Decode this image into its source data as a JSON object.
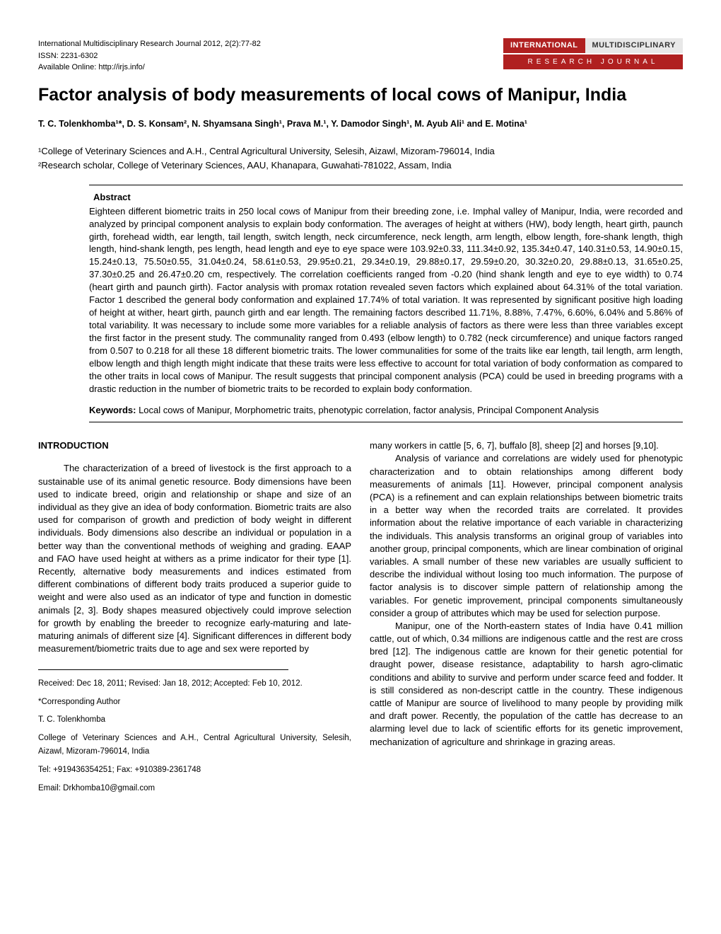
{
  "header": {
    "journal_line": "International Multidisciplinary Research Journal 2012, 2(2):77-82",
    "issn": "ISSN: 2231-6302",
    "online": "Available Online: http://irjs.info/",
    "badge_intl": "INTERNATIONAL",
    "badge_multi": "MULTIDISCIPLINARY",
    "badge_bottom": "RESEARCH JOURNAL"
  },
  "title": "Factor analysis of body measurements of local cows of Manipur, India",
  "authors_html": "T. C. Tolenkhomba¹*, D. S. Konsam², N. Shyamsana Singh¹, Prava M.¹, Y. Damodor Singh¹, M. Ayub Ali¹ and E. Motina¹",
  "affiliations": {
    "a1": "¹College of Veterinary Sciences and A.H., Central Agricultural University, Selesih, Aizawl, Mizoram-796014, India",
    "a2": "²Research scholar, College of Veterinary Sciences, AAU, Khanapara, Guwahati-781022, Assam, India"
  },
  "abstract": {
    "heading": "Abstract",
    "body": "Eighteen different biometric traits in 250 local cows of Manipur from their breeding zone, i.e. Imphal valley of Manipur, India, were recorded and analyzed by principal component analysis to explain body conformation. The averages of height at withers (HW), body length, heart girth, paunch girth, forehead width, ear length, tail length, switch length, neck circumference, neck length, arm length,   elbow length, fore-shank length, thigh length, hind-shank length, pes length, head length and eye to eye space were 103.92±0.33, 111.34±0.92, 135.34±0.47, 140.31±0.53, 14.90±0.15, 15.24±0.13, 75.50±0.55, 31.04±0.24, 58.61±0.53, 29.95±0.21, 29.34±0.19, 29.88±0.17, 29.59±0.20, 30.32±0.20, 29.88±0.13, 31.65±0.25, 37.30±0.25 and 26.47±0.20 cm, respectively. The correlation coefficients ranged from -0.20 (hind shank length and eye to eye width) to 0.74 (heart girth and paunch girth).   Factor analysis with promax rotation revealed seven factors which explained about 64.31% of the total variation. Factor 1 described the general body conformation and explained 17.74% of total variation. It was represented by significant positive high loading of height at wither, heart girth, paunch girth and ear length. The remaining factors described 11.71%, 8.88%, 7.47%, 6.60%, 6.04% and 5.86% of total variability.   It was necessary to include some more variables for a reliable analysis of factors as there were less than three variables except the first factor in the present study. The communality ranged from 0.493 (elbow length) to 0.782 (neck circumference) and unique factors ranged from 0.507 to 0.218 for all these 18 different biometric traits. The lower communalities for some of the traits like ear length, tail length, arm length, elbow length and thigh length might indicate that these traits were less effective to account for total variation of body conformation as compared to the other traits in local cows of Manipur. The result suggests that principal component analysis (PCA) could be used in breeding programs with a drastic reduction in the number of biometric traits to be recorded to explain body conformation.",
    "keywords_label": "Keywords:",
    "keywords": " Local cows of Manipur, Morphometric traits, phenotypic correlation, factor analysis, Principal Component Analysis"
  },
  "intro_heading": "INTRODUCTION",
  "col_left_p1": "The characterization of a breed of livestock is the first approach to a sustainable use of its animal genetic resource. Body dimensions have been used to indicate breed, origin and relationship or shape and size of an individual as they give an idea of body conformation. Biometric traits are also used for comparison of growth and prediction of body weight in different individuals. Body dimensions also describe an individual or population in a better way than the conventional methods of weighing and grading. EAAP and FAO have used height at withers as a prime indicator for their type [1]. Recently, alternative body measurements and indices estimated from different combinations of different body traits produced a superior guide to weight and were also used as an indicator of type and function in domestic animals [2, 3]. Body shapes measured objectively could improve selection for growth by enabling the breeder to recognize early-maturing and late-maturing animals of different size [4]. Significant differences in different body measurement/biometric traits due to age and sex were reported by",
  "col_right_p1": "many workers in cattle [5, 6, 7], buffalo [8], sheep [2] and horses [9,10].",
  "col_right_p2": "Analysis of variance and correlations are widely used for phenotypic characterization and to obtain relationships among different body measurements of animals [11]. However, principal component analysis (PCA) is a refinement and can explain relationships between biometric traits in a better way when the recorded traits are correlated. It provides information about the relative importance of each variable in characterizing the individuals. This analysis transforms an original group of variables into another group, principal components, which are linear combination of original variables. A small number of these new variables are usually sufficient to describe the individual without losing too much information. The purpose of factor analysis is to discover simple pattern of relationship among the variables. For genetic improvement, principal components simultaneously consider a group of attributes which may be used for selection purpose.",
  "col_right_p3": "Manipur, one of the North-eastern states of India have 0.41 million cattle, out of which, 0.34 millions are indigenous cattle and the rest are cross bred [12]. The indigenous cattle are known for their genetic potential for draught power, disease resistance, adaptability to harsh agro-climatic conditions and ability to survive and perform under scarce feed and fodder. It is still considered as non-descript cattle in the country. These indigenous cattle of Manipur are source of livelihood to many people by providing milk and draft power. Recently, the population of the cattle has decrease to an alarming level due to lack of scientific efforts for its genetic improvement, mechanization of agriculture and shrinkage in grazing areas.",
  "footer": {
    "received": "Received: Dec 18, 2011; Revised: Jan 18, 2012; Accepted: Feb 10, 2012.",
    "corresponding": "*Corresponding Author",
    "name": "T. C. Tolenkhomba",
    "addr": "College of Veterinary Sciences and A.H., Central Agricultural University, Selesih, Aizawl, Mizoram-796014, India",
    "tel": "Tel: +919436354251; Fax: +910389-2361748",
    "email": "Email: Drkhomba10@gmail.com"
  }
}
